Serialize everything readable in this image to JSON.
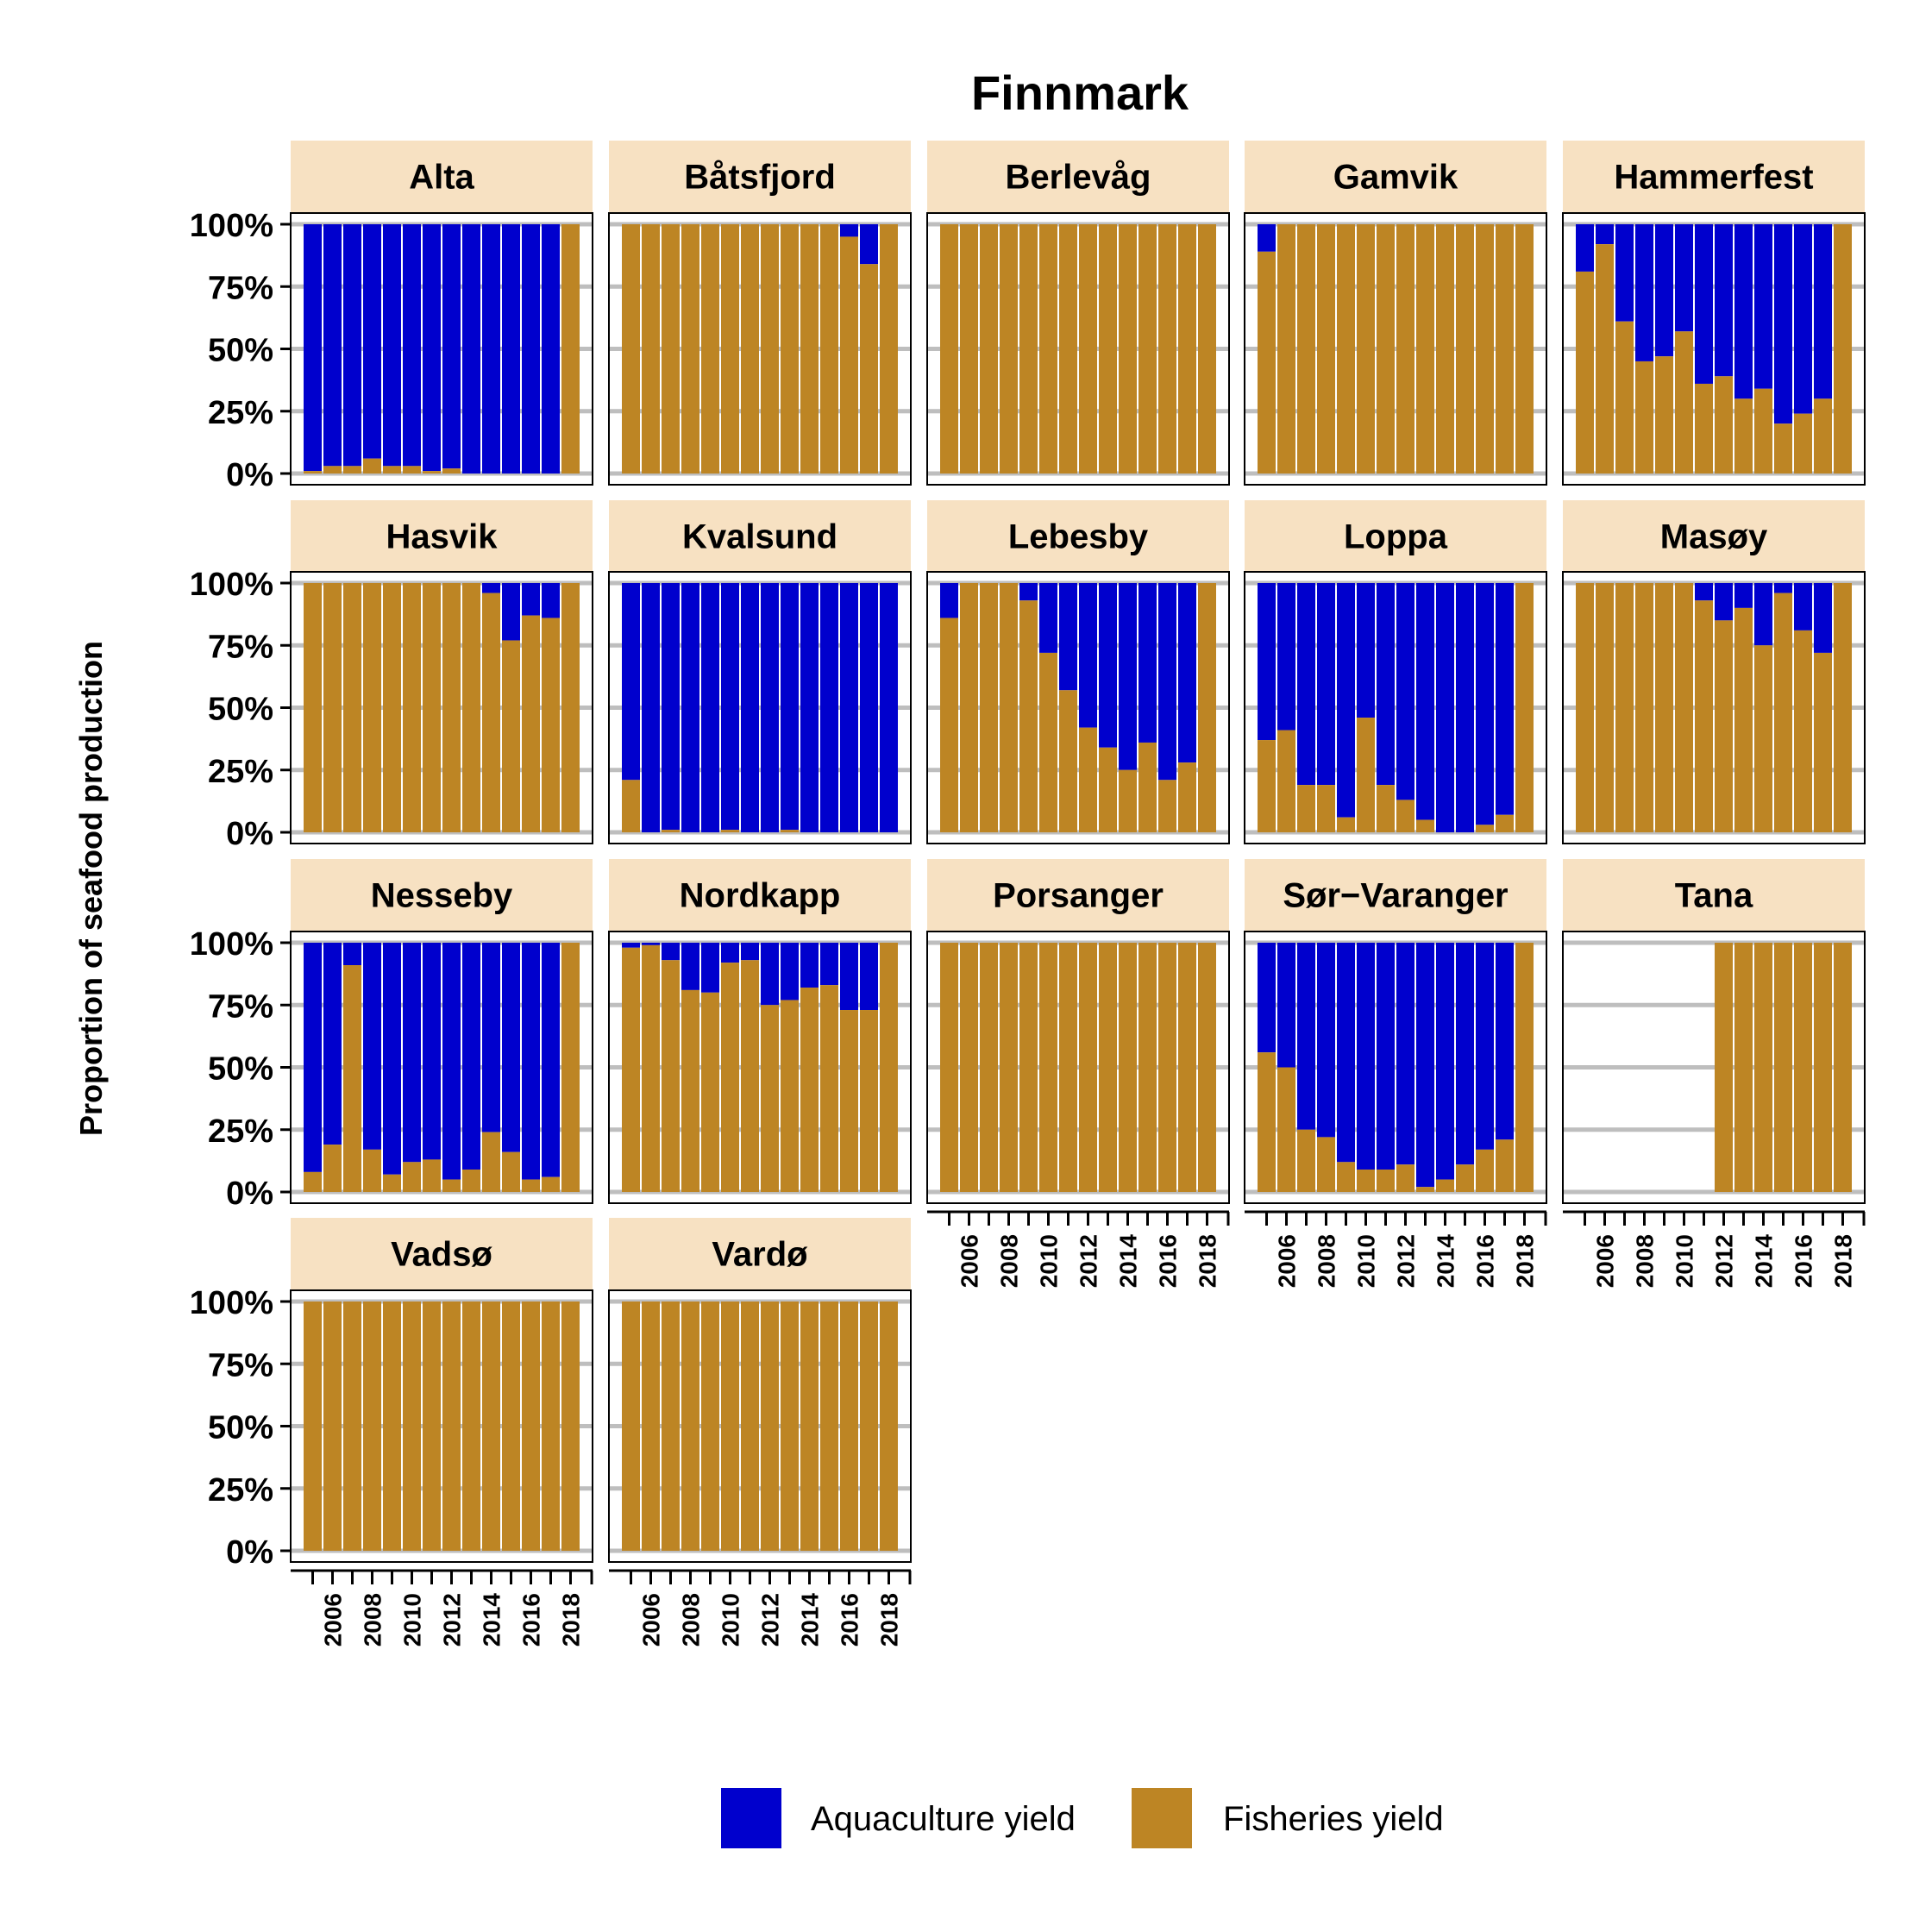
{
  "chart_data": {
    "type": "bar",
    "stacked": true,
    "percent": true,
    "title": "Finnmark",
    "ylabel": "Proportion of seafood production",
    "xlabel": "",
    "ylim": [
      0,
      100
    ],
    "yticks": [
      "0%",
      "25%",
      "50%",
      "75%",
      "100%"
    ],
    "x": [
      2005,
      2006,
      2007,
      2008,
      2009,
      2010,
      2011,
      2012,
      2013,
      2014,
      2015,
      2016,
      2017,
      2018
    ],
    "xticks": [
      "2006",
      "2008",
      "2010",
      "2012",
      "2014",
      "2016",
      "2018"
    ],
    "legend": {
      "position": "bottom",
      "entries": [
        {
          "name": "Aquaculture yield",
          "color": "#0000CD"
        },
        {
          "name": "Fisheries yield",
          "color": "#BD8524"
        }
      ]
    },
    "colors": {
      "aquaculture": "#0000CD",
      "fisheries": "#BD8524",
      "strip_background": "#F7E1C2",
      "grid": "#BEBEBE"
    },
    "grid": true,
    "series_note": "values are Fisheries yield percent of total per year; Aquaculture yield is the remainder; null = no data",
    "panels": [
      {
        "name": "Alta",
        "fisheries": [
          1,
          3,
          3,
          6,
          3,
          3,
          1,
          2,
          0,
          0,
          0,
          0,
          0,
          100
        ]
      },
      {
        "name": "Båtsfjord",
        "fisheries": [
          100,
          100,
          100,
          100,
          100,
          100,
          100,
          100,
          100,
          100,
          100,
          95,
          84,
          100
        ]
      },
      {
        "name": "Berlevåg",
        "fisheries": [
          100,
          100,
          100,
          100,
          100,
          100,
          100,
          100,
          100,
          100,
          100,
          100,
          100,
          100
        ]
      },
      {
        "name": "Gamvik",
        "fisheries": [
          89,
          100,
          100,
          100,
          100,
          100,
          100,
          100,
          100,
          100,
          100,
          100,
          100,
          100
        ]
      },
      {
        "name": "Hammerfest",
        "fisheries": [
          81,
          92,
          61,
          45,
          47,
          57,
          36,
          39,
          30,
          34,
          20,
          24,
          30,
          100
        ]
      },
      {
        "name": "Hasvik",
        "fisheries": [
          100,
          100,
          100,
          100,
          100,
          100,
          100,
          100,
          100,
          96,
          77,
          87,
          86,
          100
        ]
      },
      {
        "name": "Kvalsund",
        "fisheries": [
          21,
          0,
          1,
          0,
          0,
          1,
          0,
          0,
          1,
          0,
          0,
          0,
          0,
          0
        ]
      },
      {
        "name": "Lebesby",
        "fisheries": [
          86,
          100,
          100,
          100,
          93,
          72,
          57,
          42,
          34,
          25,
          36,
          21,
          28,
          100
        ]
      },
      {
        "name": "Loppa",
        "fisheries": [
          37,
          41,
          19,
          19,
          6,
          46,
          19,
          13,
          5,
          0,
          0,
          3,
          7,
          100
        ]
      },
      {
        "name": "Masøy",
        "fisheries": [
          100,
          100,
          100,
          100,
          100,
          100,
          93,
          85,
          90,
          75,
          96,
          81,
          72,
          100
        ]
      },
      {
        "name": "Nesseby",
        "fisheries": [
          8,
          19,
          91,
          17,
          7,
          12,
          13,
          5,
          9,
          24,
          16,
          5,
          6,
          100
        ]
      },
      {
        "name": "Nordkapp",
        "fisheries": [
          98,
          99,
          93,
          81,
          80,
          92,
          93,
          75,
          77,
          82,
          83,
          73,
          73,
          100
        ]
      },
      {
        "name": "Porsanger",
        "fisheries": [
          100,
          100,
          100,
          100,
          100,
          100,
          100,
          100,
          100,
          100,
          100,
          100,
          100,
          100
        ]
      },
      {
        "name": "Sør−Varanger",
        "fisheries": [
          56,
          50,
          25,
          22,
          12,
          9,
          9,
          11,
          2,
          5,
          11,
          17,
          21,
          100
        ]
      },
      {
        "name": "Tana",
        "fisheries": [
          null,
          null,
          null,
          null,
          null,
          null,
          null,
          100,
          100,
          100,
          100,
          100,
          100,
          100
        ]
      },
      {
        "name": "Vadsø",
        "fisheries": [
          100,
          100,
          100,
          100,
          100,
          100,
          100,
          100,
          100,
          100,
          100,
          100,
          100,
          100
        ]
      },
      {
        "name": "Vardø",
        "fisheries": [
          100,
          100,
          100,
          100,
          100,
          100,
          100,
          100,
          100,
          100,
          100,
          100,
          100,
          100
        ]
      }
    ]
  }
}
